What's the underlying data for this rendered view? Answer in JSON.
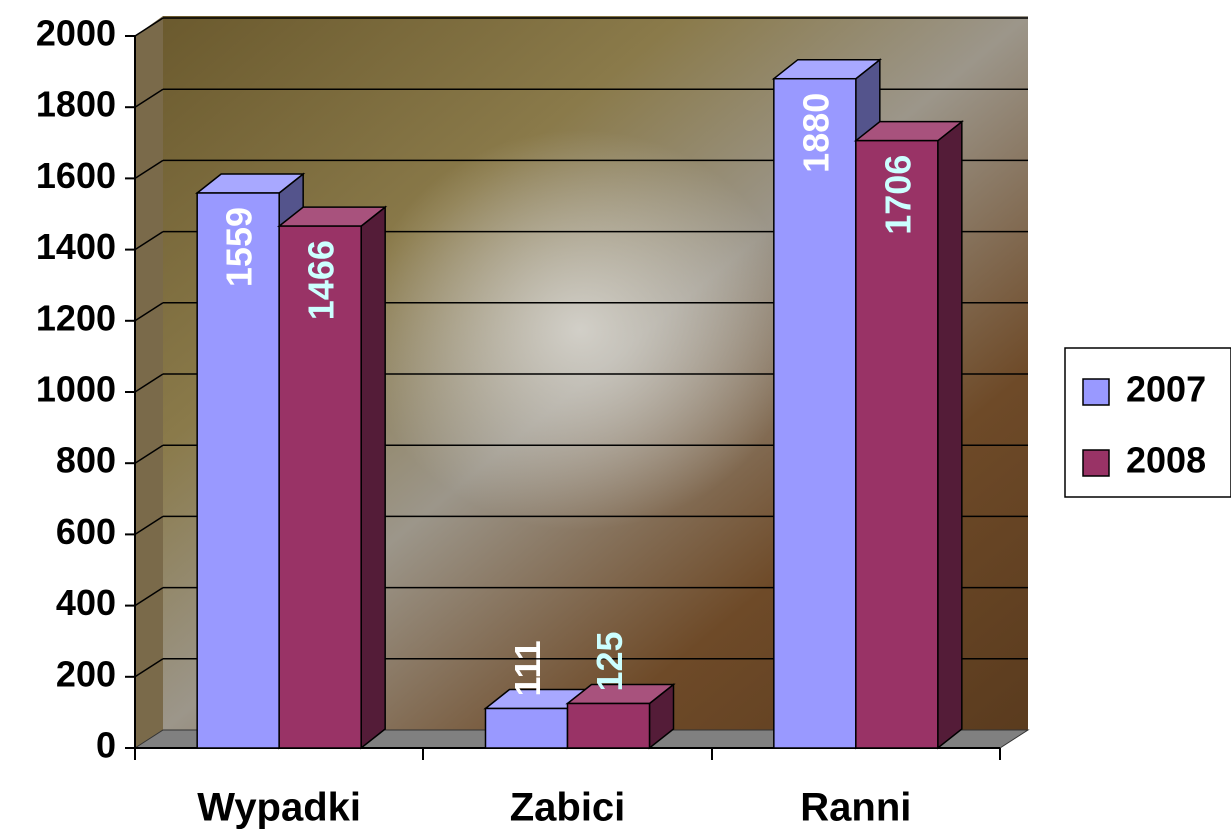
{
  "chart_data": {
    "type": "bar3d",
    "categories": [
      "Wypadki",
      "Zabici",
      "Ranni"
    ],
    "series": [
      {
        "name": "2007",
        "color": "#9999ff",
        "label_color": "#ffffff",
        "values": [
          1559,
          111,
          1880
        ]
      },
      {
        "name": "2008",
        "color": "#993366",
        "label_color": "#ccffff",
        "values": [
          1466,
          125,
          1706
        ]
      }
    ],
    "ylim": [
      0,
      2000
    ],
    "yticks": [
      0,
      200,
      400,
      600,
      800,
      1000,
      1200,
      1400,
      1600,
      1800,
      2000
    ],
    "grid": true,
    "legend": "right"
  }
}
